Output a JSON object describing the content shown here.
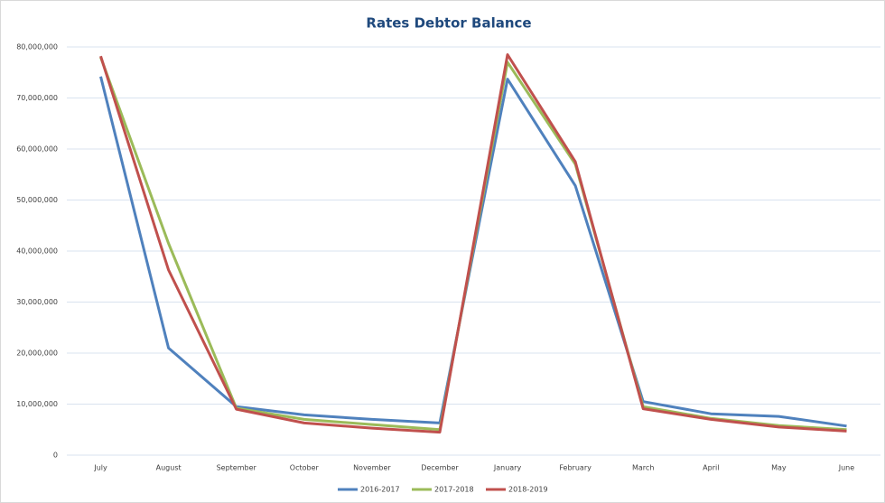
{
  "chart_data": {
    "type": "line",
    "title": "Rates Debtor Balance",
    "categories": [
      "July",
      "August",
      "September",
      "October",
      "November",
      "December",
      "January",
      "February",
      "March",
      "April",
      "May",
      "June"
    ],
    "series": [
      {
        "name": "2016-2017",
        "color": "#4f81bd",
        "values": [
          74200000,
          21000000,
          9500000,
          7900000,
          7000000,
          6300000,
          73700000,
          52800000,
          10500000,
          8100000,
          7600000,
          5700000
        ]
      },
      {
        "name": "2017-2018",
        "color": "#9bbb59",
        "values": [
          78000000,
          41500000,
          9200000,
          7000000,
          6000000,
          5000000,
          77000000,
          57000000,
          9500000,
          7200000,
          5800000,
          5000000
        ]
      },
      {
        "name": "2018-2019",
        "color": "#c0504d",
        "values": [
          78200000,
          36300000,
          9000000,
          6300000,
          5300000,
          4500000,
          78500000,
          57500000,
          9100000,
          7000000,
          5500000,
          4700000
        ]
      }
    ],
    "ylim": [
      0,
      80000000
    ],
    "yticks": [
      0,
      {
        "value": 10000000,
        "label": "10,000,000"
      },
      {
        "value": 20000000,
        "label": "20,000,000"
      },
      {
        "value": 30000000,
        "label": "30,000,000"
      },
      {
        "value": 40000000,
        "label": "40,000,000"
      },
      {
        "value": 50000000,
        "label": "50,000,000"
      },
      {
        "value": 60000000,
        "label": "60,000,000"
      },
      {
        "value": 70000000,
        "label": "70,000,000"
      },
      {
        "value": 80000000,
        "label": "80,000,000"
      }
    ],
    "grid": true,
    "legend": "bottom"
  }
}
